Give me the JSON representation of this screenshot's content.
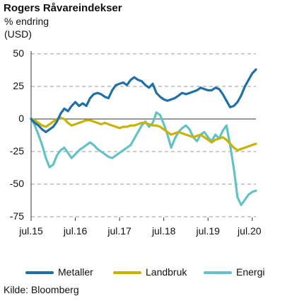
{
  "chart_data": {
    "type": "line",
    "title": "Rogers Råvareindekser",
    "subtitle": "% endring\n(USD)",
    "source": "Kilde: Bloomberg",
    "x_tick_labels": [
      "jul.15",
      "jul.16",
      "jul.17",
      "jul.18",
      "jul.19",
      "jul.20"
    ],
    "y_ticks": [
      50,
      25,
      0,
      -25,
      -50,
      -75
    ],
    "ylim": [
      -75,
      50
    ],
    "grid": "horizontal dashed",
    "legend_position": "bottom",
    "x": [
      "2015-07",
      "2015-08",
      "2015-09",
      "2015-10",
      "2015-11",
      "2015-12",
      "2016-01",
      "2016-02",
      "2016-03",
      "2016-04",
      "2016-05",
      "2016-06",
      "2016-07",
      "2016-08",
      "2016-09",
      "2016-10",
      "2016-11",
      "2016-12",
      "2017-01",
      "2017-02",
      "2017-03",
      "2017-04",
      "2017-05",
      "2017-06",
      "2017-07",
      "2017-08",
      "2017-09",
      "2017-10",
      "2017-11",
      "2017-12",
      "2018-01",
      "2018-02",
      "2018-03",
      "2018-04",
      "2018-05",
      "2018-06",
      "2018-07",
      "2018-08",
      "2018-09",
      "2018-10",
      "2018-11",
      "2018-12",
      "2019-01",
      "2019-02",
      "2019-03",
      "2019-04",
      "2019-05",
      "2019-06",
      "2019-07",
      "2019-08",
      "2019-09",
      "2019-10",
      "2019-11",
      "2019-12",
      "2020-01",
      "2020-02",
      "2020-03",
      "2020-04",
      "2020-05",
      "2020-06",
      "2020-07",
      "2020-08"
    ],
    "series": [
      {
        "name": "Metaller",
        "color": "#1f6fa8",
        "values": [
          0,
          -3,
          -5,
          -8,
          -10,
          -8,
          -6,
          -2,
          4,
          8,
          6,
          10,
          13,
          10,
          12,
          10,
          16,
          19,
          20,
          19,
          17,
          16,
          22,
          26,
          27,
          28,
          26,
          30,
          32,
          30,
          29,
          26,
          24,
          27,
          20,
          17,
          15,
          14,
          15,
          16,
          18,
          20,
          19,
          20,
          21,
          22,
          24,
          23,
          22,
          22,
          24,
          23,
          19,
          14,
          9,
          10,
          13,
          18,
          25,
          30,
          35,
          38
        ],
        "stroke_width": 3.2
      },
      {
        "name": "Landbruk",
        "color": "#c8b400",
        "values": [
          0,
          -1,
          -3,
          -5,
          -6,
          -4,
          -2,
          0,
          1,
          0,
          -3,
          -5,
          -4,
          -3,
          -2,
          -1,
          -1,
          -2,
          -3,
          -4,
          -3,
          -4,
          -5,
          -6,
          -7,
          -6,
          -6,
          -5,
          -5,
          -4,
          -3,
          -3,
          -4,
          -5,
          -5,
          -6,
          -8,
          -10,
          -12,
          -11,
          -10,
          -11,
          -12,
          -13,
          -14,
          -13,
          -12,
          -14,
          -16,
          -18,
          -16,
          -15,
          -14,
          -16,
          -19,
          -22,
          -24,
          -23,
          -22,
          -21,
          -20,
          -19
        ],
        "stroke_width": 3.2
      },
      {
        "name": "Energi",
        "color": "#63c2c6",
        "values": [
          1,
          -5,
          -12,
          -20,
          -30,
          -37,
          -35,
          -28,
          -24,
          -22,
          -26,
          -30,
          -27,
          -24,
          -22,
          -20,
          -18,
          -20,
          -23,
          -25,
          -27,
          -29,
          -30,
          -28,
          -26,
          -24,
          -22,
          -20,
          -15,
          -10,
          -5,
          -2,
          -6,
          -3,
          5,
          3,
          -4,
          -12,
          -22,
          -15,
          -10,
          -7,
          -5,
          -8,
          -14,
          -17,
          -12,
          -10,
          -14,
          -17,
          -12,
          -15,
          -9,
          -5,
          -20,
          -38,
          -60,
          -66,
          -62,
          -58,
          -56,
          -55
        ],
        "stroke_width": 3.2
      }
    ]
  },
  "colors": {
    "grid": "#9a9a9a",
    "zero_line": "#333333"
  }
}
